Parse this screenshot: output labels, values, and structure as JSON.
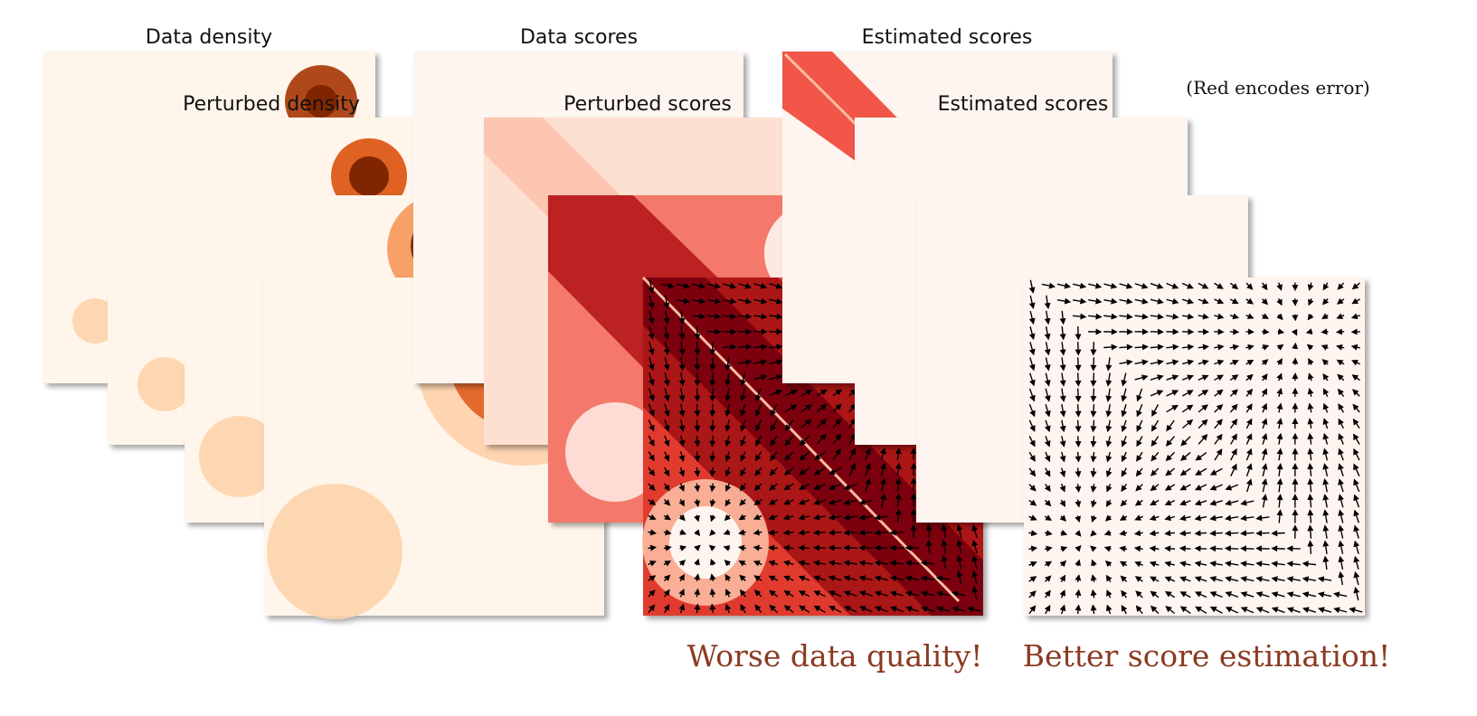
{
  "labels": {
    "data_density": "Data density",
    "perturbed_density": "Perturbed density",
    "data_scores": "Data scores",
    "perturbed_scores": "Perturbed scores",
    "estimated_scores_top": "Estimated scores",
    "estimated_scores_second": "Estimated scores",
    "note": "(Red encodes error)",
    "caption_left": "Worse data quality!",
    "caption_right": "Better score estimation!"
  },
  "colors": {
    "density_dark": "#7f2704",
    "density_light": "#fff5eb",
    "error_dark": "#67000d",
    "error_light": "#fff5f0",
    "caption": "#8b3a22",
    "arrow": "#000000"
  },
  "stacks": [
    {
      "name": "density",
      "layers": 4
    },
    {
      "name": "perturbed-scores",
      "layers": 4
    },
    {
      "name": "estimated-scores",
      "layers": 4
    }
  ]
}
